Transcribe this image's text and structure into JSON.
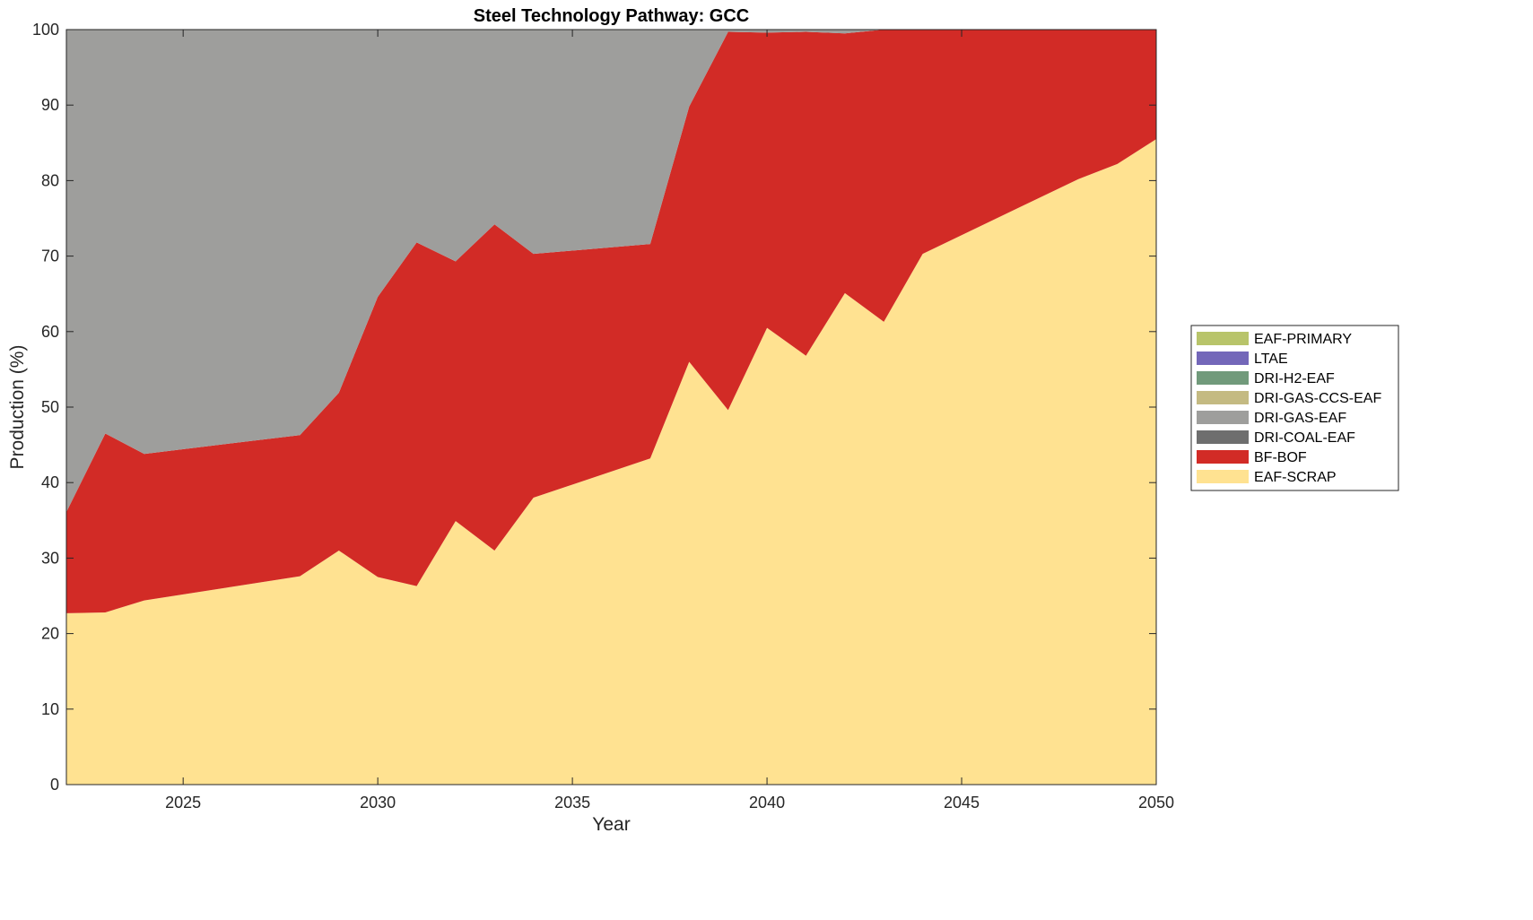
{
  "chart_data": {
    "type": "area",
    "stacked": true,
    "title": "Steel Technology Pathway: GCC",
    "xlabel": "Year",
    "ylabel": "Production (%)",
    "xlim": [
      2022,
      2050
    ],
    "ylim": [
      0,
      100
    ],
    "xticks": [
      2025,
      2030,
      2035,
      2040,
      2045,
      2050
    ],
    "yticks": [
      0,
      10,
      20,
      30,
      40,
      50,
      60,
      70,
      80,
      90,
      100
    ],
    "grid": false,
    "legend_placement": "outside-right",
    "x": [
      2022,
      2023,
      2024,
      2028,
      2029,
      2030,
      2031,
      2032,
      2033,
      2034,
      2037,
      2038,
      2039,
      2040,
      2041,
      2042,
      2043,
      2044,
      2048,
      2049,
      2050
    ],
    "series": [
      {
        "name": "EAF-SCRAP",
        "color": "#FFE291",
        "values": [
          22.7,
          22.8,
          24.4,
          27.6,
          31.0,
          27.5,
          26.3,
          34.9,
          31.0,
          38.0,
          43.2,
          56.0,
          49.6,
          60.5,
          56.8,
          65.1,
          61.3,
          70.3,
          80.2,
          82.2,
          85.5
        ]
      },
      {
        "name": "BF-BOF",
        "color": "#D22B26",
        "values": [
          13.4,
          23.7,
          19.4,
          18.7,
          20.9,
          37.1,
          45.5,
          34.4,
          43.2,
          32.3,
          28.4,
          33.8,
          50.1,
          39.1,
          42.9,
          34.4,
          38.7,
          29.7,
          19.8,
          17.8,
          14.5
        ]
      },
      {
        "name": "DRI-COAL-EAF",
        "color": "#6E6E6E",
        "values": [
          0,
          0,
          0,
          0,
          0,
          0,
          0,
          0,
          0,
          0,
          0,
          0,
          0,
          0,
          0,
          0,
          0,
          0,
          0,
          0,
          0
        ]
      },
      {
        "name": "DRI-GAS-EAF",
        "color": "#9E9E9C",
        "values": [
          63.9,
          53.5,
          56.2,
          53.7,
          48.1,
          35.4,
          28.2,
          30.7,
          25.8,
          29.7,
          28.4,
          10.2,
          0.3,
          0.4,
          0.3,
          0.5,
          0,
          0,
          0,
          0,
          0
        ]
      },
      {
        "name": "DRI-GAS-CCS-EAF",
        "color": "#C4BA82",
        "values": [
          0,
          0,
          0,
          0,
          0,
          0,
          0,
          0,
          0,
          0,
          0,
          0,
          0,
          0,
          0,
          0,
          0,
          0,
          0,
          0,
          0
        ]
      },
      {
        "name": "DRI-H2-EAF",
        "color": "#719A7B",
        "values": [
          0,
          0,
          0,
          0,
          0,
          0,
          0,
          0,
          0,
          0,
          0,
          0,
          0,
          0,
          0,
          0,
          0,
          0,
          0,
          0,
          0
        ]
      },
      {
        "name": "LTAE",
        "color": "#7367B9",
        "values": [
          0,
          0,
          0,
          0,
          0,
          0,
          0,
          0,
          0,
          0,
          0,
          0,
          0,
          0,
          0,
          0,
          0,
          0,
          0,
          0,
          0
        ]
      },
      {
        "name": "EAF-PRIMARY",
        "color": "#B8C46A",
        "values": [
          0,
          0,
          0,
          0,
          0,
          0,
          0,
          0,
          0,
          0,
          0,
          0,
          0,
          0,
          0,
          0,
          0,
          0,
          0,
          0,
          0
        ]
      }
    ],
    "legend_order": [
      "EAF-PRIMARY",
      "LTAE",
      "DRI-H2-EAF",
      "DRI-GAS-CCS-EAF",
      "DRI-GAS-EAF",
      "DRI-COAL-EAF",
      "BF-BOF",
      "EAF-SCRAP"
    ]
  }
}
